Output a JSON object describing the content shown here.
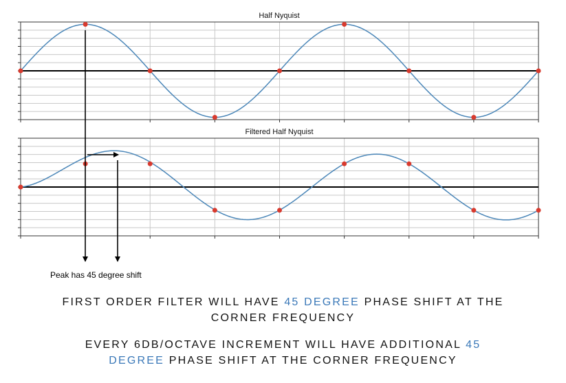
{
  "chart_data": [
    {
      "type": "line",
      "title": "Half Nyquist",
      "xlim": [
        0,
        8
      ],
      "ylim": [
        -1.05,
        1.05
      ],
      "grid": true,
      "curve": {
        "name": "",
        "amplitude": 1.0,
        "period_samples": 4,
        "phase_deg": 0,
        "color": "#4a86b8"
      },
      "samples": {
        "x": [
          0,
          1,
          2,
          3,
          4,
          5,
          6,
          7,
          8
        ],
        "y": [
          0,
          1,
          0,
          -1,
          0,
          1,
          0,
          -1,
          0
        ],
        "color": "#d83a2e"
      }
    },
    {
      "type": "line",
      "title": "Filtered Half Nyquist",
      "xlim": [
        0,
        8
      ],
      "ylim": [
        -1.05,
        1.05
      ],
      "grid": true,
      "curve": {
        "name": "",
        "amplitude": 0.707,
        "period_samples": 4,
        "phase_deg": -45,
        "start_x": 0,
        "color": "#4a86b8"
      },
      "samples": {
        "x": [
          0,
          1,
          2,
          3,
          4,
          5,
          6,
          7,
          8
        ],
        "y": [
          0,
          0.5,
          0.5,
          -0.5,
          -0.5,
          0.5,
          0.5,
          -0.5,
          -0.5
        ],
        "color": "#d83a2e"
      }
    }
  ],
  "annotation": {
    "label": "Peak has 45 degree shift"
  },
  "caption1": {
    "before": "FIRST ORDER FILTER WILL HAVE ",
    "highlight": "45 DEGREE",
    "after": " PHASE SHIFT AT THE",
    "line2": "CORNER FREQUENCY"
  },
  "caption2": {
    "before": "EVERY 6DB/OCTAVE INCREMENT WILL HAVE ADDITIONAL ",
    "highlight": "45",
    "line2_highlight": "DEGREE",
    "line2_after": " PHASE SHIFT AT THE CORNER FREQUENCY"
  },
  "colors": {
    "highlight": "#3a78b8",
    "curve": "#4a86b8",
    "sample": "#d83a2e",
    "grid": "#c8c8c8",
    "axis": "#000000"
  }
}
